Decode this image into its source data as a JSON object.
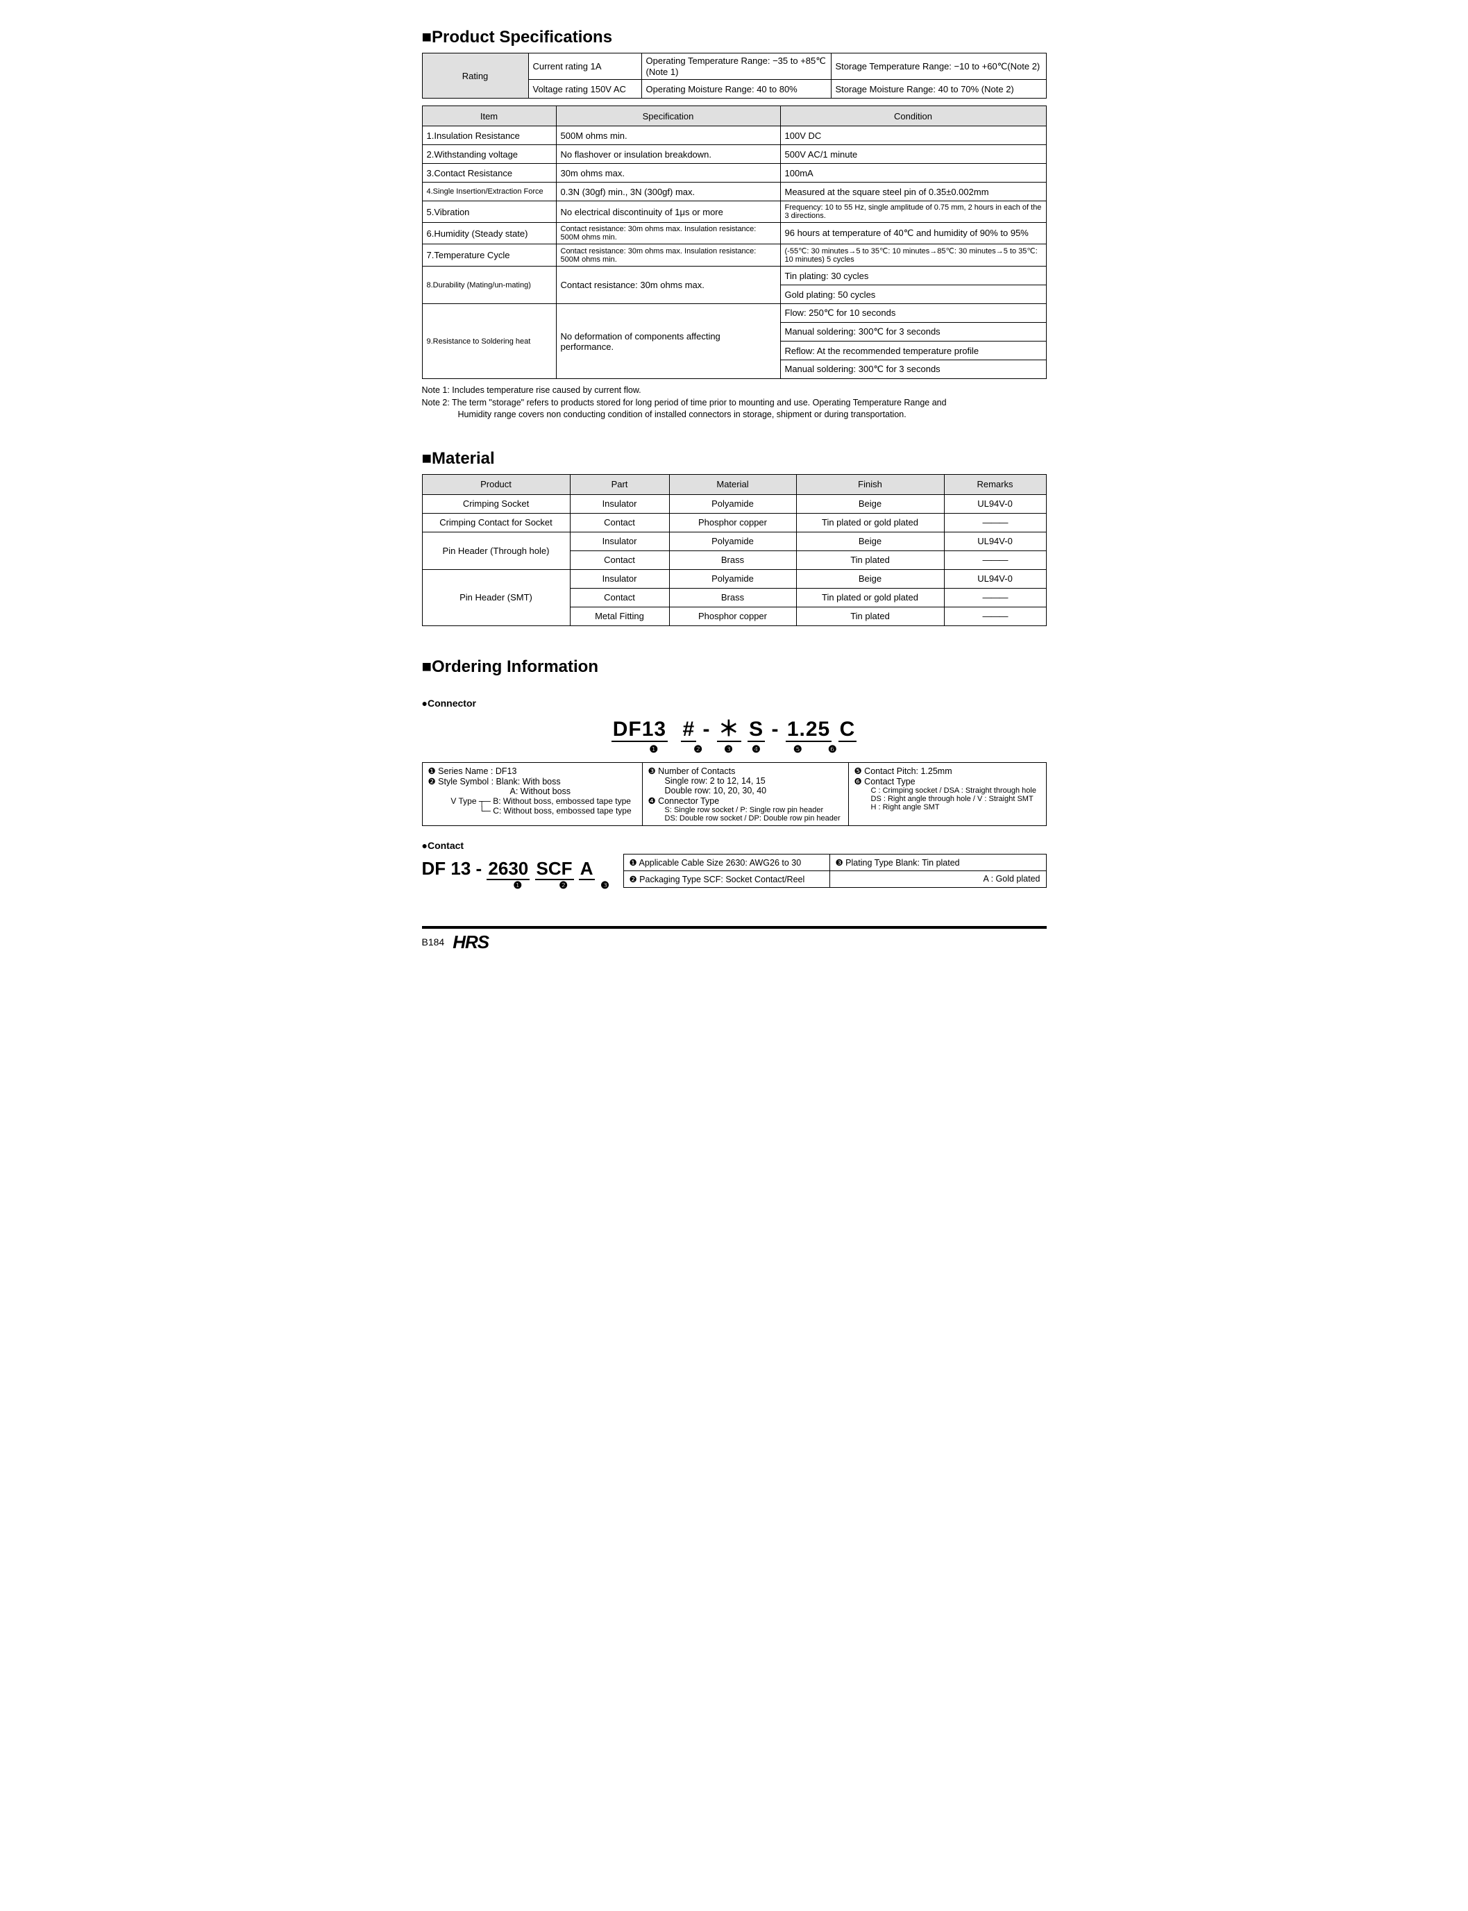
{
  "sections": {
    "spec_title": "■Product Specifications",
    "material_title": "■Material",
    "ordering_title": "■Ordering Information"
  },
  "rating": {
    "label": "Rating",
    "current": "Current rating  1A",
    "voltage": "Voltage rating  150V AC",
    "op_temp": "Operating Temperature Range: −35 to +85℃ (Note 1)",
    "op_moist": "Operating Moisture Range: 40 to 80%",
    "stor_temp": "Storage Temperature Range: −10 to +60℃(Note 2)",
    "stor_moist": "Storage Moisture Range: 40 to 70%       (Note 2)"
  },
  "spec_headers": {
    "item": "Item",
    "spec": "Specification",
    "cond": "Condition"
  },
  "spec_rows": [
    {
      "item": "1.Insulation Resistance",
      "spec": "500M ohms min.",
      "cond": [
        "100V DC"
      ]
    },
    {
      "item": "2.Withstanding voltage",
      "spec": "No flashover or insulation breakdown.",
      "cond": [
        "500V AC/1 minute"
      ]
    },
    {
      "item": "3.Contact Resistance",
      "spec": "30m ohms max.",
      "cond": [
        "100mA"
      ]
    },
    {
      "item": "4.Single Insertion/Extraction Force",
      "spec": "0.3N (30gf) min., 3N (300gf) max.",
      "cond": [
        "Measured at the square steel pin of 0.35±0.002mm"
      ],
      "item_small": true
    },
    {
      "item": "5.Vibration",
      "spec": "No electrical discontinuity of 1μs or more",
      "cond": [
        "Frequency: 10 to 55 Hz, single amplitude of 0.75 mm, 2 hours in each of the 3 directions."
      ],
      "cond_small": true
    },
    {
      "item": "6.Humidity (Steady state)",
      "spec": "Contact resistance: 30m ohms max. Insulation resistance: 500M ohms min.",
      "cond": [
        "96 hours at temperature of 40℃ and humidity of 90% to 95%"
      ],
      "spec_small": true
    },
    {
      "item": "7.Temperature Cycle",
      "spec": "Contact resistance: 30m ohms max. Insulation resistance: 500M ohms min.",
      "cond": [
        "(-55℃: 30 minutes→5 to 35℃: 10 minutes→85℃: 30 minutes→5 to 35℃: 10 minutes) 5 cycles"
      ],
      "spec_small": true,
      "cond_small": true
    },
    {
      "item": "8.Durability (Mating/un-mating)",
      "spec": "Contact resistance: 30m ohms max.",
      "cond": [
        "Tin plating: 30 cycles",
        "Gold plating: 50 cycles"
      ],
      "item_small": true
    },
    {
      "item": "9.Resistance to Soldering heat",
      "spec": "No deformation of components affecting performance.",
      "cond": [
        "Flow: 250℃ for 10 seconds",
        "Manual soldering: 300℃ for 3 seconds",
        "Reflow: At the recommended temperature profile",
        "Manual soldering: 300℃ for 3 seconds"
      ],
      "item_small": true
    }
  ],
  "notes": {
    "n1": "Note 1: Includes temperature rise caused by current flow.",
    "n2a": "Note 2: The term \"storage\" refers to products stored for long period of time prior to mounting and use. Operating Temperature Range and",
    "n2b": "Humidity range covers non conducting condition of installed connectors in storage, shipment or during transportation."
  },
  "material_headers": {
    "product": "Product",
    "part": "Part",
    "material": "Material",
    "finish": "Finish",
    "remarks": "Remarks"
  },
  "material_rows": [
    {
      "product": "Crimping Socket",
      "rowspan": 1,
      "cells": [
        [
          "Insulator",
          "Polyamide",
          "Beige",
          "UL94V-0"
        ]
      ]
    },
    {
      "product": "Crimping Contact for Socket",
      "rowspan": 1,
      "cells": [
        [
          "Contact",
          "Phosphor copper",
          "Tin plated or gold plated",
          "———"
        ]
      ]
    },
    {
      "product": "Pin Header (Through hole)",
      "rowspan": 2,
      "cells": [
        [
          "Insulator",
          "Polyamide",
          "Beige",
          "UL94V-0"
        ],
        [
          "Contact",
          "Brass",
          "Tin plated",
          "———"
        ]
      ]
    },
    {
      "product": "Pin Header (SMT)",
      "rowspan": 3,
      "cells": [
        [
          "Insulator",
          "Polyamide",
          "Beige",
          "UL94V-0"
        ],
        [
          "Contact",
          "Brass",
          "Tin plated or gold plated",
          "———"
        ],
        [
          "Metal Fitting",
          "Phosphor copper",
          "Tin plated",
          "———"
        ]
      ]
    }
  ],
  "ordering": {
    "connector_label": "●Connector",
    "contact_label": "●Contact",
    "pn_segments": [
      "DF13",
      "#",
      "＊",
      "S",
      "1.25",
      "C"
    ],
    "pn_circled": [
      "❶",
      "❷",
      "❸",
      "❹",
      "❺",
      "❻"
    ],
    "col1": {
      "l1": "❶ Series Name      : DF13",
      "l2": "❷ Style Symbol     : Blank: With boss",
      "l3": "A: Without boss",
      "l4": "V Type",
      "l4b": "B: Without boss, embossed tape type",
      "l4c": "C: Without boss, embossed tape type"
    },
    "col2": {
      "l1": "❸ Number of Contacts",
      "l2": "Single row: 2 to 12, 14, 15",
      "l3": "Double row: 10, 20, 30, 40",
      "l4": "❹ Connector Type",
      "l5": "S: Single row socket / P: Single row pin header",
      "l6": "DS: Double row socket / DP: Double row pin header"
    },
    "col3": {
      "l1": "❺ Contact Pitch: 1.25mm",
      "l2": "❻ Contact Type",
      "l3": "C : Crimping socket / DSA : Straight through hole",
      "l4": "DS : Right angle through hole / V : Straight SMT",
      "l5": "H : Right angle SMT"
    },
    "contact_pn": [
      "DF 13",
      "2630",
      "SCF",
      "A"
    ],
    "contact_circ": [
      "❶",
      "❷",
      "❸"
    ],
    "contact_info": {
      "c1": "❶ Applicable Cable Size  2630: AWG26 to 30",
      "c2": "❷ Packaging Type  SCF: Socket Contact/Reel",
      "c3a": "❸ Plating Type    Blank: Tin plated",
      "c3b": "A   : Gold plated"
    }
  },
  "footer": {
    "page": "B184",
    "logo": "HRS"
  },
  "colors": {
    "header_bg": "#e0e0e0",
    "border": "#000000",
    "text": "#000000"
  }
}
